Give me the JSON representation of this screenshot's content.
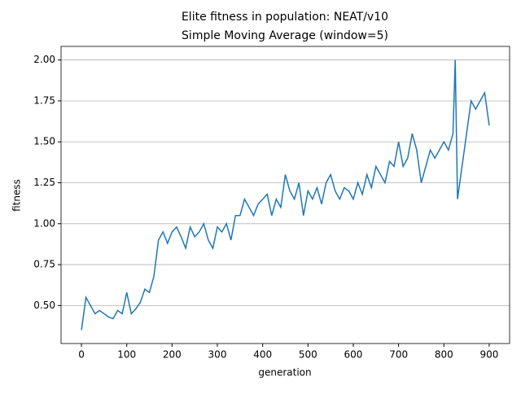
{
  "chart_data": {
    "type": "line",
    "title": "Elite fitness in population: NEAT/v10",
    "subtitle": "Simple Moving Average (window=5)",
    "x_label": "generation",
    "y_label": "fitness",
    "x": [
      0,
      10,
      20,
      30,
      40,
      50,
      60,
      70,
      80,
      90,
      100,
      110,
      120,
      130,
      140,
      150,
      160,
      170,
      180,
      190,
      200,
      210,
      220,
      230,
      240,
      250,
      260,
      270,
      280,
      290,
      300,
      310,
      320,
      330,
      340,
      350,
      360,
      370,
      380,
      390,
      400,
      410,
      420,
      430,
      440,
      450,
      460,
      470,
      480,
      490,
      500,
      510,
      520,
      530,
      540,
      550,
      560,
      570,
      580,
      590,
      600,
      610,
      620,
      630,
      640,
      650,
      660,
      670,
      680,
      690,
      700,
      710,
      720,
      730,
      740,
      750,
      760,
      770,
      780,
      790,
      800,
      810,
      820,
      825,
      830,
      840,
      850,
      860,
      870,
      880,
      890,
      900
    ],
    "series": [
      {
        "name": "fitness",
        "color": "#1f77b4",
        "values": [
          0.35,
          0.55,
          0.5,
          0.45,
          0.47,
          0.45,
          0.43,
          0.42,
          0.47,
          0.45,
          0.58,
          0.45,
          0.48,
          0.52,
          0.6,
          0.58,
          0.68,
          0.9,
          0.95,
          0.88,
          0.95,
          0.98,
          0.92,
          0.85,
          0.98,
          0.92,
          0.95,
          1.0,
          0.9,
          0.85,
          0.98,
          0.95,
          1.0,
          0.9,
          1.05,
          1.05,
          1.15,
          1.1,
          1.05,
          1.12,
          1.15,
          1.18,
          1.05,
          1.15,
          1.1,
          1.3,
          1.2,
          1.15,
          1.25,
          1.05,
          1.2,
          1.15,
          1.22,
          1.12,
          1.25,
          1.3,
          1.2,
          1.15,
          1.22,
          1.2,
          1.15,
          1.25,
          1.18,
          1.3,
          1.22,
          1.35,
          1.3,
          1.25,
          1.38,
          1.35,
          1.5,
          1.35,
          1.4,
          1.55,
          1.45,
          1.25,
          1.35,
          1.45,
          1.4,
          1.45,
          1.5,
          1.45,
          1.55,
          2.0,
          1.15,
          1.35,
          1.55,
          1.75,
          1.7,
          1.75,
          1.8,
          1.6
        ]
      }
    ],
    "xlim": [
      -45,
      945
    ],
    "ylim": [
      0.268,
      2.083
    ],
    "xticks": [
      0,
      100,
      200,
      300,
      400,
      500,
      600,
      700,
      800,
      900
    ],
    "yticks": [
      {
        "value": 0.5,
        "label": "0.50"
      },
      {
        "value": 0.75,
        "label": "0.75"
      },
      {
        "value": 1.0,
        "label": "1.00"
      },
      {
        "value": 1.25,
        "label": "1.25"
      },
      {
        "value": 1.5,
        "label": "1.50"
      },
      {
        "value": 1.75,
        "label": "1.75"
      },
      {
        "value": 2.0,
        "label": "2.00"
      }
    ],
    "grid": "y"
  }
}
